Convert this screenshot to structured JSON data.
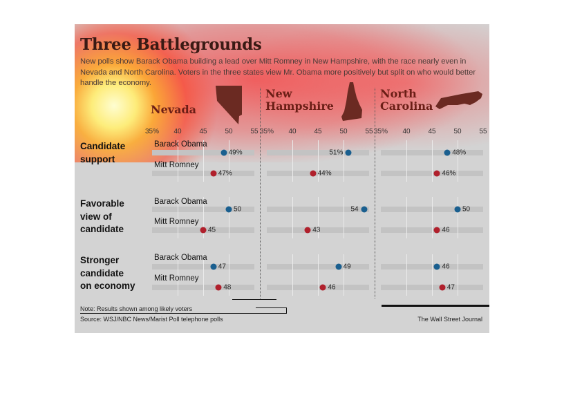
{
  "title": "Three Battlegrounds",
  "subtitle": "New polls show Barack Obama building a lead over Mitt Romney in New Hampshire, with the race nearly even in Nevada and North Carolina. Voters in the three states view Mr. Obama more positively but split on who would better handle the economy.",
  "chart_data": {
    "type": "scatter",
    "title": "Three Battlegrounds",
    "xlim": [
      35,
      55
    ],
    "ticks": [
      "35%",
      "40",
      "45",
      "50",
      "55"
    ],
    "states": [
      {
        "name_lines": [
          "Nevada"
        ],
        "shape_icon": "nevada-state-shape"
      },
      {
        "name_lines": [
          "New",
          "Hampshire"
        ],
        "shape_icon": "new-hampshire-state-shape"
      },
      {
        "name_lines": [
          "North",
          "Carolina"
        ],
        "shape_icon": "north-carolina-state-shape"
      }
    ],
    "rows": [
      {
        "label_lines": [
          "Candidate",
          "support"
        ],
        "candidates": [
          {
            "name": "Barack Obama",
            "values": [
              49,
              51,
              48
            ],
            "labels": [
              "49%",
              "51%",
              "48%"
            ]
          },
          {
            "name": "Mitt Romney",
            "values": [
              47,
              44,
              46
            ],
            "labels": [
              "47%",
              "44%",
              "46%"
            ]
          }
        ]
      },
      {
        "label_lines": [
          "Favorable",
          "view of",
          "candidate"
        ],
        "candidates": [
          {
            "name": "Barack Obama",
            "values": [
              50,
              54,
              50
            ],
            "labels": [
              "50",
              "54",
              "50"
            ]
          },
          {
            "name": "Mitt Romney",
            "values": [
              45,
              43,
              46
            ],
            "labels": [
              "45",
              "43",
              "46"
            ]
          }
        ]
      },
      {
        "label_lines": [
          "Stronger",
          "candidate",
          "on economy"
        ],
        "candidates": [
          {
            "name": "Barack Obama",
            "values": [
              47,
              49,
              46
            ],
            "labels": [
              "47",
              "49",
              "46"
            ]
          },
          {
            "name": "Mitt Romney",
            "values": [
              48,
              46,
              47
            ],
            "labels": [
              "48",
              "46",
              "47"
            ]
          }
        ]
      }
    ],
    "colors": {
      "obama": "#1a5f8f",
      "romney": "#b0202c"
    },
    "grid": true
  },
  "note": "Note: Results shown among likely voters",
  "source": "Source: WSJ/NBC News/Marist Poll telephone polls",
  "credit": "The Wall Street Journal"
}
